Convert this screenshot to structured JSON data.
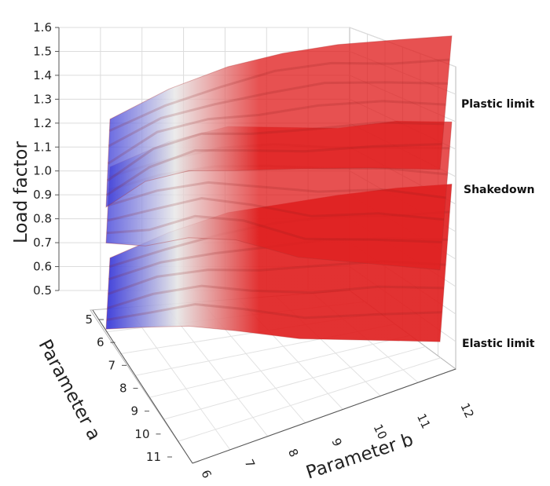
{
  "chart_data": {
    "type": "surface3d",
    "title": "",
    "zlabel": "Load factor",
    "xlabel": "Parameter b",
    "ylabel": "Parameter a",
    "zlim": [
      0.5,
      1.6
    ],
    "z_ticks": [
      "0.5",
      "0.6",
      "0.7",
      "0.8",
      "0.9",
      "1.0",
      "1.1",
      "1.2",
      "1.3",
      "1.4",
      "1.5",
      "1.6"
    ],
    "a_ticks": [
      "5",
      "6",
      "7",
      "8",
      "9",
      "10",
      "11"
    ],
    "b_ticks": [
      "6",
      "7",
      "8",
      "9",
      "10",
      "11",
      "12"
    ],
    "colormap": [
      "#3b3bd8",
      "#e6e6e6",
      "#e02020"
    ],
    "series": [
      {
        "name": "Plastic limit",
        "front_values": [
          0.98,
          1.17,
          1.28,
          1.33,
          1.37,
          1.39,
          1.4
        ],
        "back_values": [
          1.2,
          1.3,
          1.37,
          1.41,
          1.43,
          1.44,
          1.45
        ]
      },
      {
        "name": "Shakedown",
        "front_values": [
          0.83,
          0.9,
          1.0,
          1.04,
          1.0,
          0.99,
          0.98
        ],
        "back_values": [
          1.0,
          1.08,
          1.12,
          1.1,
          1.08,
          1.1,
          1.09
        ]
      },
      {
        "name": "Elastic limit",
        "front_values": [
          0.47,
          0.56,
          0.63,
          0.66,
          0.66,
          0.67,
          0.68
        ],
        "back_values": [
          0.62,
          0.7,
          0.76,
          0.78,
          0.8,
          0.82,
          0.83
        ]
      }
    ]
  }
}
